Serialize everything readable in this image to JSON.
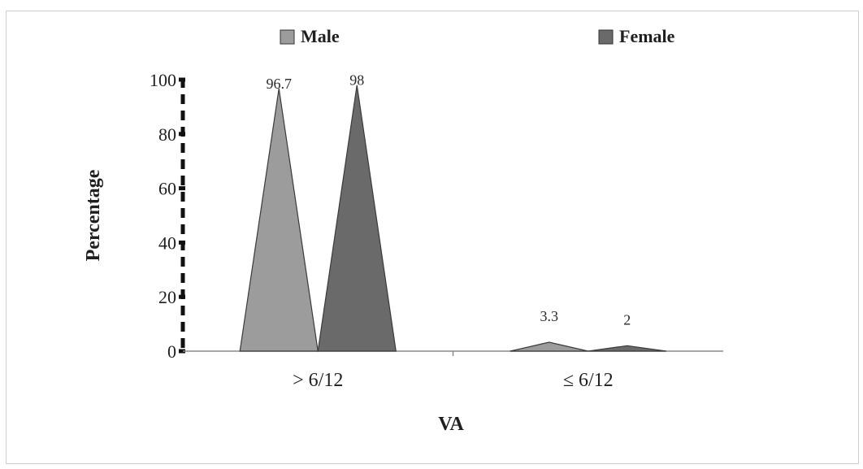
{
  "chart_data": {
    "type": "area",
    "categories": [
      "> 6/12",
      "≤ 6/12"
    ],
    "series": [
      {
        "name": "Male",
        "values": [
          96.7,
          3.3
        ],
        "labels": [
          "96.7",
          "3.3"
        ],
        "color": "#9c9c9c"
      },
      {
        "name": "Female",
        "values": [
          98,
          2
        ],
        "labels": [
          "98",
          "2"
        ],
        "color": "#6a6a6a"
      }
    ],
    "xlabel": "VA",
    "ylabel": "Percentage",
    "ylim": [
      0,
      100
    ],
    "yticks": [
      "0",
      "20",
      "40",
      "60",
      "80",
      "100"
    ],
    "legend": "top",
    "grid": false
  }
}
